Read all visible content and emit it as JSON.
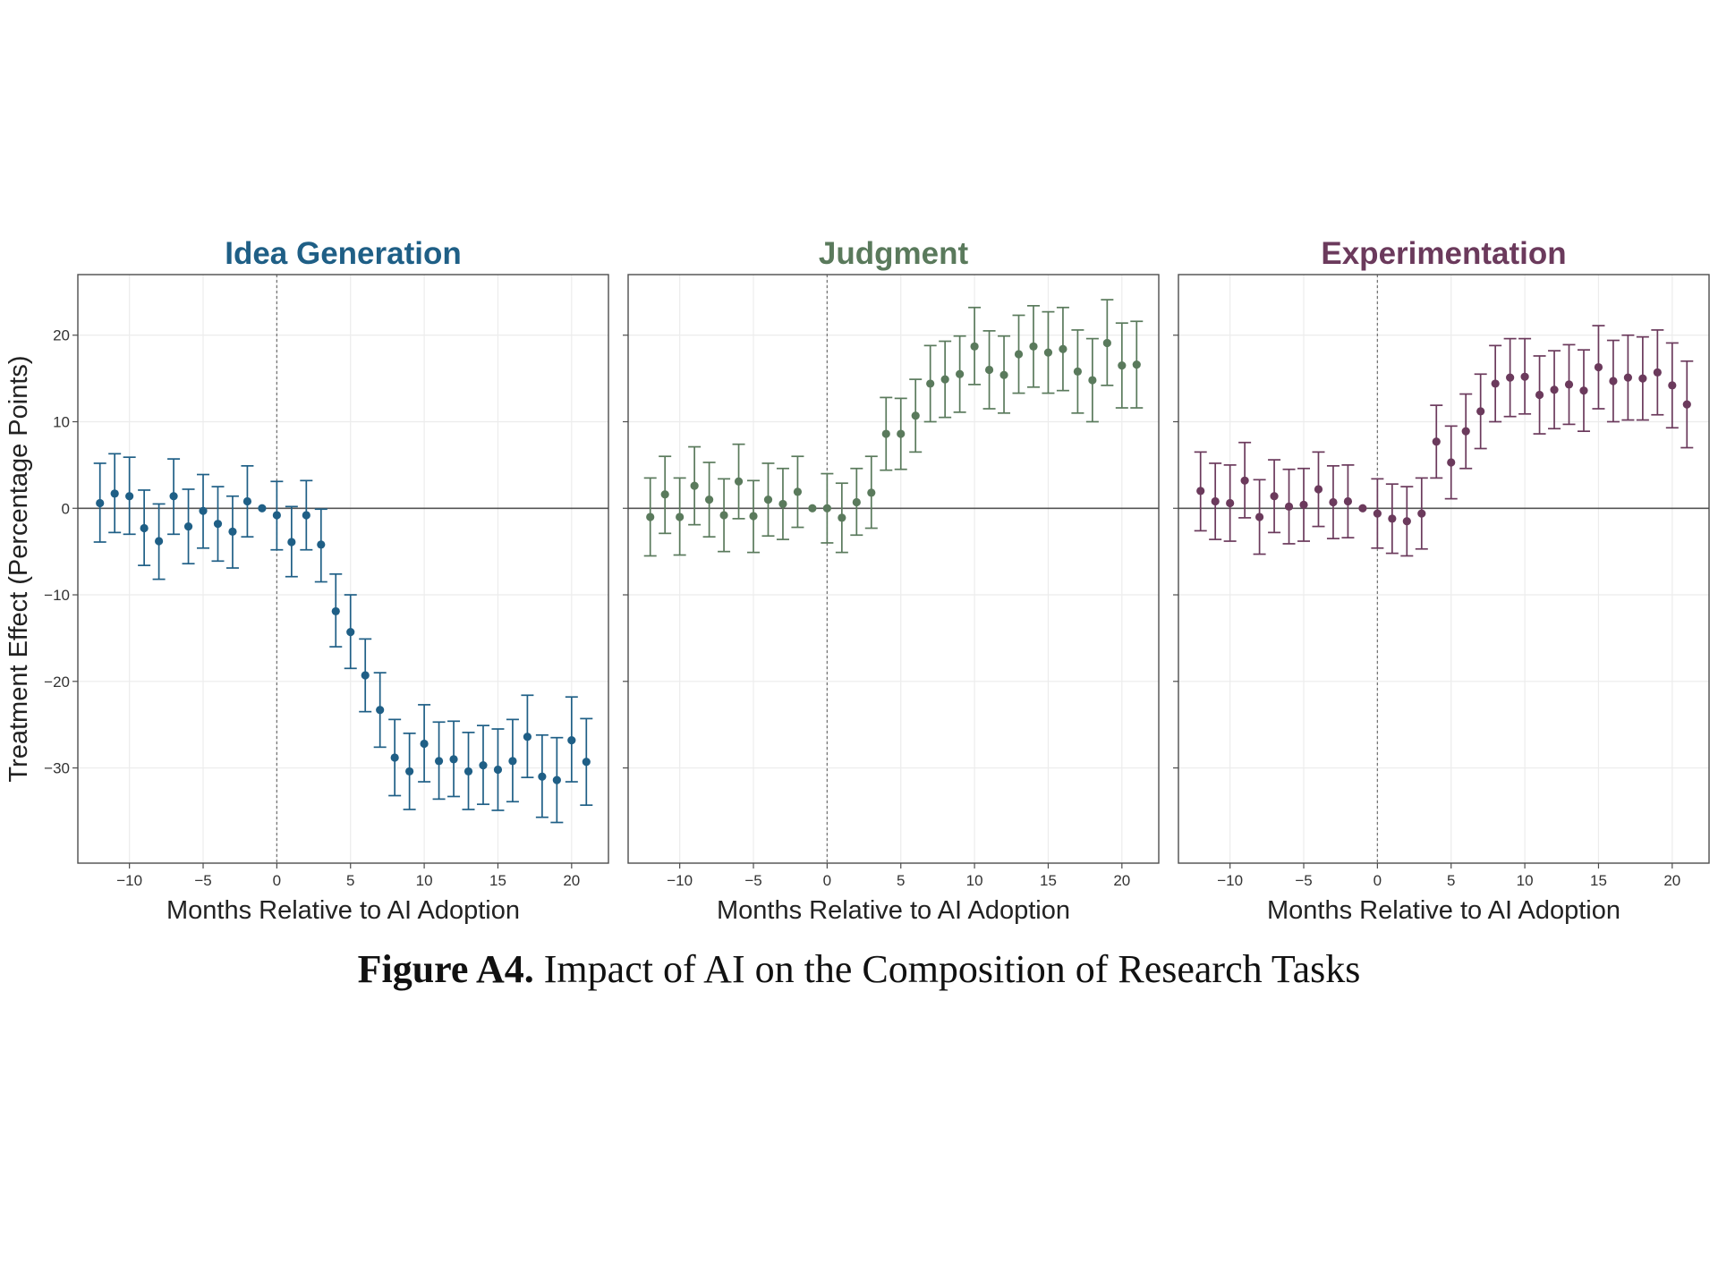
{
  "caption": {
    "label": "Figure A4.",
    "text": "Impact of AI on the Composition of Research Tasks"
  },
  "chart_data": [
    {
      "type": "scatter",
      "title": "Idea Generation",
      "color": "#1f5f86",
      "xlabel": "Months Relative to AI Adoption",
      "ylabel": "Treatment Effect (Percentage Points)",
      "xlim": [
        -13.5,
        22.5
      ],
      "ylim": [
        -41,
        27
      ],
      "xticks": [
        -10,
        -5,
        0,
        5,
        10,
        15,
        20
      ],
      "xtick_labels": [
        "−10",
        "−5",
        "0",
        "5",
        "10",
        "15",
        "20"
      ],
      "yticks": [
        20,
        10,
        0,
        -10,
        -20,
        -30
      ],
      "ytick_labels": [
        "20",
        "10",
        "0",
        "−10",
        "−20",
        "−30"
      ],
      "reference_lines": {
        "horizontal_y": 0,
        "vertical_x": 0
      },
      "grid": true,
      "x": [
        -12,
        -11,
        -10,
        -9,
        -8,
        -7,
        -6,
        -5,
        -4,
        -3,
        -2,
        -1,
        0,
        1,
        2,
        3,
        4,
        5,
        6,
        7,
        8,
        9,
        10,
        11,
        12,
        13,
        14,
        15,
        16,
        17,
        18,
        19,
        20,
        21
      ],
      "y": [
        0.6,
        1.7,
        1.4,
        -2.3,
        -3.8,
        1.4,
        -2.1,
        -0.3,
        -1.8,
        -2.7,
        0.8,
        0.0,
        -0.8,
        -3.9,
        -0.8,
        -4.2,
        -11.9,
        -14.3,
        -19.3,
        -23.3,
        -28.8,
        -30.4,
        -27.2,
        -29.2,
        -29.0,
        -30.4,
        -29.7,
        -30.2,
        -29.2,
        -26.4,
        -31.0,
        -31.4,
        -26.8,
        -29.3
      ],
      "ci_low": [
        -3.9,
        -2.8,
        -3.0,
        -6.6,
        -8.2,
        -3.0,
        -6.4,
        -4.6,
        -6.1,
        -6.9,
        -3.3,
        0.0,
        -4.8,
        -7.9,
        -4.8,
        -8.5,
        -16.0,
        -18.5,
        -23.5,
        -27.6,
        -33.2,
        -34.8,
        -31.6,
        -33.6,
        -33.3,
        -34.8,
        -34.2,
        -34.9,
        -33.9,
        -31.1,
        -35.7,
        -36.3,
        -31.6,
        -34.3
      ],
      "ci_high": [
        5.2,
        6.3,
        5.9,
        2.1,
        0.5,
        5.7,
        2.2,
        3.9,
        2.5,
        1.4,
        4.9,
        0.0,
        3.1,
        0.2,
        3.2,
        -0.1,
        -7.6,
        -10.0,
        -15.1,
        -19.0,
        -24.4,
        -26.0,
        -22.7,
        -24.7,
        -24.6,
        -25.9,
        -25.1,
        -25.5,
        -24.4,
        -21.6,
        -26.2,
        -26.5,
        -21.8,
        -24.3
      ]
    },
    {
      "type": "scatter",
      "title": "Judgment",
      "color": "#5a7a5c",
      "xlabel": "Months Relative to AI Adoption",
      "ylabel": "",
      "xlim": [
        -13.5,
        22.5
      ],
      "ylim": [
        -41,
        27
      ],
      "xticks": [
        -10,
        -5,
        0,
        5,
        10,
        15,
        20
      ],
      "xtick_labels": [
        "−10",
        "−5",
        "0",
        "5",
        "10",
        "15",
        "20"
      ],
      "yticks": [],
      "ytick_labels": [],
      "reference_lines": {
        "horizontal_y": 0,
        "vertical_x": 0
      },
      "grid": true,
      "x": [
        -12,
        -11,
        -10,
        -9,
        -8,
        -7,
        -6,
        -5,
        -4,
        -3,
        -2,
        -1,
        0,
        1,
        2,
        3,
        4,
        5,
        6,
        7,
        8,
        9,
        10,
        11,
        12,
        13,
        14,
        15,
        16,
        17,
        18,
        19,
        20,
        21
      ],
      "y": [
        -1.0,
        1.6,
        -1.0,
        2.6,
        1.0,
        -0.8,
        3.1,
        -0.9,
        1.0,
        0.5,
        1.9,
        0.0,
        0.0,
        -1.1,
        0.7,
        1.8,
        8.6,
        8.6,
        10.7,
        14.4,
        14.9,
        15.5,
        18.7,
        16.0,
        15.4,
        17.8,
        18.7,
        18.0,
        18.4,
        15.8,
        14.8,
        19.1,
        16.5,
        16.6
      ],
      "ci_low": [
        -5.5,
        -2.9,
        -5.4,
        -1.9,
        -3.3,
        -5.0,
        -1.2,
        -5.1,
        -3.2,
        -3.6,
        -2.2,
        0.0,
        -4.0,
        -5.1,
        -3.1,
        -2.3,
        4.4,
        4.5,
        6.5,
        10.0,
        10.5,
        11.1,
        14.3,
        11.5,
        11.0,
        13.3,
        14.0,
        13.3,
        13.6,
        11.0,
        10.0,
        14.2,
        11.6,
        11.6
      ],
      "ci_high": [
        3.5,
        6.0,
        3.5,
        7.1,
        5.3,
        3.4,
        7.4,
        3.2,
        5.2,
        4.6,
        6.0,
        0.0,
        4.0,
        2.9,
        4.6,
        6.0,
        12.8,
        12.7,
        14.9,
        18.8,
        19.3,
        19.9,
        23.2,
        20.5,
        19.9,
        22.3,
        23.4,
        22.7,
        23.2,
        20.6,
        19.6,
        24.1,
        21.4,
        21.6
      ]
    },
    {
      "type": "scatter",
      "title": "Experimentation",
      "color": "#6b3a5c",
      "xlabel": "Months Relative to AI Adoption",
      "ylabel": "",
      "xlim": [
        -13.5,
        22.5
      ],
      "ylim": [
        -41,
        27
      ],
      "xticks": [
        -10,
        -5,
        0,
        5,
        10,
        15,
        20
      ],
      "xtick_labels": [
        "−10",
        "−5",
        "0",
        "5",
        "10",
        "15",
        "20"
      ],
      "yticks": [],
      "ytick_labels": [],
      "reference_lines": {
        "horizontal_y": 0,
        "vertical_x": 0
      },
      "grid": true,
      "x": [
        -12,
        -11,
        -10,
        -9,
        -8,
        -7,
        -6,
        -5,
        -4,
        -3,
        -2,
        -1,
        0,
        1,
        2,
        3,
        4,
        5,
        6,
        7,
        8,
        9,
        10,
        11,
        12,
        13,
        14,
        15,
        16,
        17,
        18,
        19,
        20,
        21
      ],
      "y": [
        2.0,
        0.8,
        0.6,
        3.2,
        -1.0,
        1.4,
        0.2,
        0.4,
        2.2,
        0.7,
        0.8,
        0.0,
        -0.6,
        -1.2,
        -1.5,
        -0.6,
        7.7,
        5.3,
        8.9,
        11.2,
        14.4,
        15.1,
        15.2,
        13.1,
        13.7,
        14.3,
        13.6,
        16.3,
        14.7,
        15.1,
        15.0,
        15.7,
        14.2,
        12.0
      ],
      "ci_low": [
        -2.6,
        -3.6,
        -3.8,
        -1.1,
        -5.3,
        -2.8,
        -4.1,
        -3.8,
        -2.1,
        -3.5,
        -3.4,
        0.0,
        -4.6,
        -5.2,
        -5.5,
        -4.7,
        3.5,
        1.1,
        4.6,
        6.9,
        10.0,
        10.6,
        10.9,
        8.6,
        9.2,
        9.7,
        8.9,
        11.5,
        10.0,
        10.2,
        10.2,
        10.8,
        9.3,
        7.0
      ],
      "ci_high": [
        6.5,
        5.2,
        5.0,
        7.6,
        3.3,
        5.6,
        4.5,
        4.6,
        6.5,
        4.9,
        5.0,
        0.0,
        3.4,
        2.8,
        2.5,
        3.5,
        11.9,
        9.5,
        13.2,
        15.5,
        18.8,
        19.6,
        19.6,
        17.6,
        18.2,
        18.9,
        18.3,
        21.1,
        19.4,
        20.0,
        19.8,
        20.6,
        19.1,
        17.0
      ]
    }
  ]
}
